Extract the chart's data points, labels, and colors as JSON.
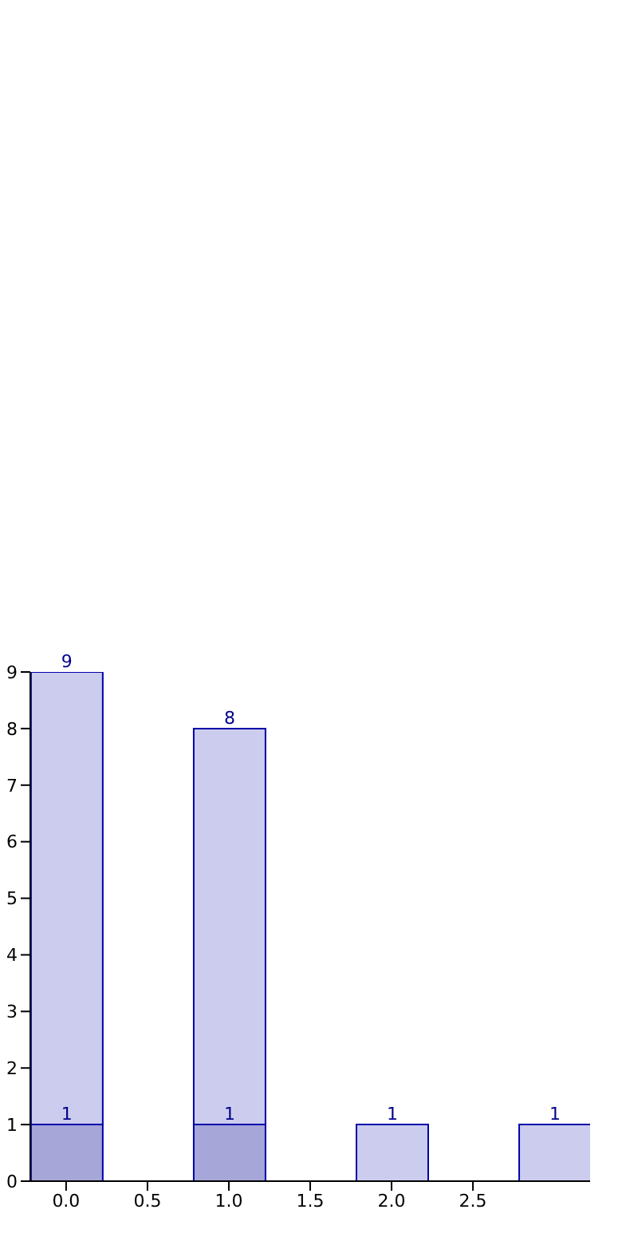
{
  "chart_data": {
    "type": "bar",
    "x": [
      0,
      1,
      2,
      3
    ],
    "stacked": true,
    "series": [
      {
        "color": "#a6a6d8",
        "values": [
          1,
          1,
          null,
          null
        ],
        "value_labels": [
          "1",
          "1",
          null,
          null
        ]
      },
      {
        "color": "#ccccee",
        "values": [
          8,
          7,
          1,
          1
        ]
      }
    ],
    "totals": [
      "9",
      "8",
      "1",
      "1"
    ],
    "xlim": [
      -0.22,
      3.22
    ],
    "xticks": [
      {
        "value": 0,
        "label": "0.0"
      },
      0.5,
      {
        "value": 1,
        "label": "1.0"
      },
      1.5,
      {
        "value": 2,
        "label": "2.0"
      },
      2.5
    ],
    "ylim": [
      0,
      9
    ],
    "yticks": [
      0,
      1,
      2,
      3,
      4,
      5,
      6,
      7,
      8,
      9
    ],
    "grid": false,
    "legend": false
  }
}
